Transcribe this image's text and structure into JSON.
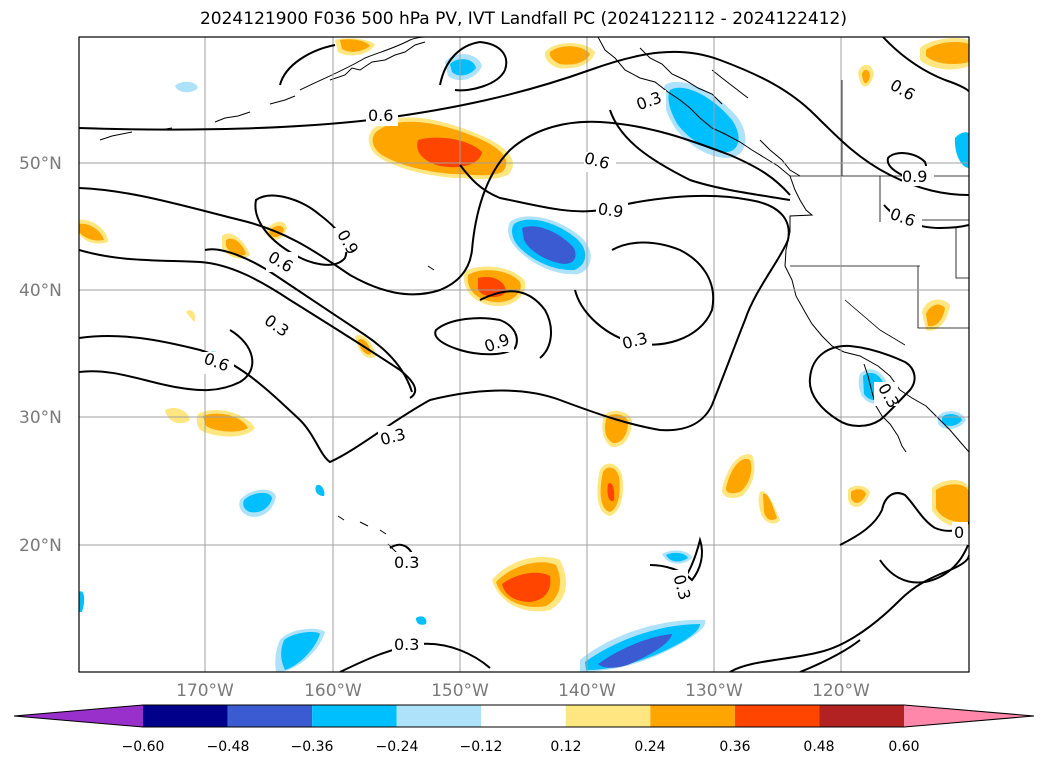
{
  "title": "2024121900 F036 500 hPa PV, IVT Landfall PC (2024122112 - 2024122412)",
  "gridlines": {
    "lat_labels": [
      "50°N",
      "40°N",
      "30°N",
      "20°N"
    ],
    "lon_labels": [
      "170°W",
      "160°W",
      "150°W",
      "140°W",
      "130°W",
      "120°W"
    ]
  },
  "contour_labels": [
    "0.6",
    "0.3",
    "0.6",
    "0.9",
    "0.9",
    "0.6",
    "0.3",
    "0.6",
    "0.9",
    "0.3",
    "0.6",
    "0.9",
    "0.6",
    "0.3",
    "0.3",
    "0.3",
    "0.3",
    "0.3",
    "0"
  ],
  "colorbar": {
    "ticks": [
      "−0.60",
      "−0.48",
      "−0.36",
      "−0.24",
      "−0.12",
      "0.12",
      "0.24",
      "0.36",
      "0.48",
      "0.60"
    ],
    "colors": [
      "#9a30cc",
      "#00008b",
      "#3a5bd1",
      "#00bfff",
      "#aee2fa",
      "#ffffff",
      "#ffe680",
      "#ffa500",
      "#ff4500",
      "#b22222",
      "#ff88aa"
    ]
  }
}
